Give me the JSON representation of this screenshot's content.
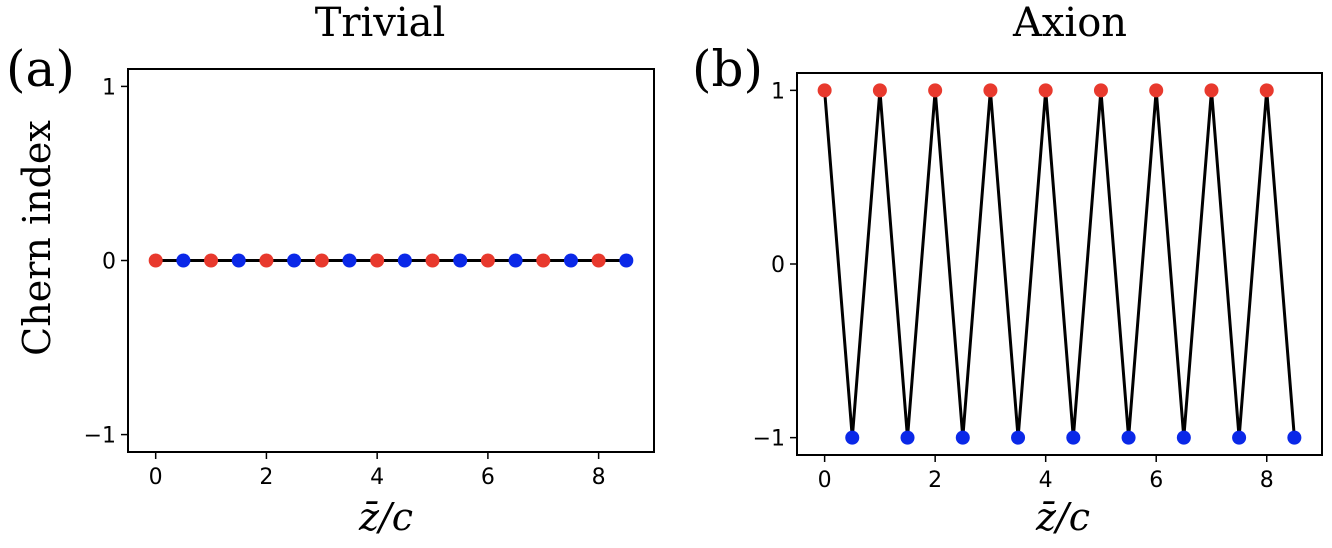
{
  "chart_data": [
    {
      "type": "line",
      "panel_label": "(a)",
      "title": "Trivial",
      "xlabel": "z̄/c",
      "ylabel": "Chern index",
      "xlim": [
        -0.5,
        9.0
      ],
      "ylim": [
        -1.1,
        1.1
      ],
      "xticks": [
        0,
        2,
        4,
        6,
        8
      ],
      "yticks": [
        -1,
        0,
        1
      ],
      "ytick_labels": [
        "−1",
        "0",
        "1"
      ],
      "grid": false,
      "line_color": "#000000",
      "series": [
        {
          "color": "#e8392d",
          "x": [
            0,
            1,
            2,
            3,
            4,
            5,
            6,
            7,
            8
          ],
          "y": [
            0,
            0,
            0,
            0,
            0,
            0,
            0,
            0,
            0
          ]
        },
        {
          "color": "#0a28e8",
          "x": [
            0.5,
            1.5,
            2.5,
            3.5,
            4.5,
            5.5,
            6.5,
            7.5,
            8.5
          ],
          "y": [
            0,
            0,
            0,
            0,
            0,
            0,
            0,
            0,
            0
          ]
        }
      ]
    },
    {
      "type": "line",
      "panel_label": "(b)",
      "title": "Axion",
      "xlabel": "z̄/c",
      "ylabel": "",
      "xlim": [
        -0.5,
        9.0
      ],
      "ylim": [
        -1.1,
        1.1
      ],
      "xticks": [
        0,
        2,
        4,
        6,
        8
      ],
      "yticks": [
        -1,
        0,
        1
      ],
      "ytick_labels": [
        "−1",
        "0",
        "1"
      ],
      "grid": false,
      "line_color": "#000000",
      "series": [
        {
          "color": "#e8392d",
          "x": [
            0,
            1,
            2,
            3,
            4,
            5,
            6,
            7,
            8
          ],
          "y": [
            1,
            1,
            1,
            1,
            1,
            1,
            1,
            1,
            1
          ]
        },
        {
          "color": "#0a28e8",
          "x": [
            0.5,
            1.5,
            2.5,
            3.5,
            4.5,
            5.5,
            6.5,
            7.5,
            8.5
          ],
          "y": [
            -1,
            -1,
            -1,
            -1,
            -1,
            -1,
            -1,
            -1,
            -1
          ]
        }
      ]
    }
  ]
}
